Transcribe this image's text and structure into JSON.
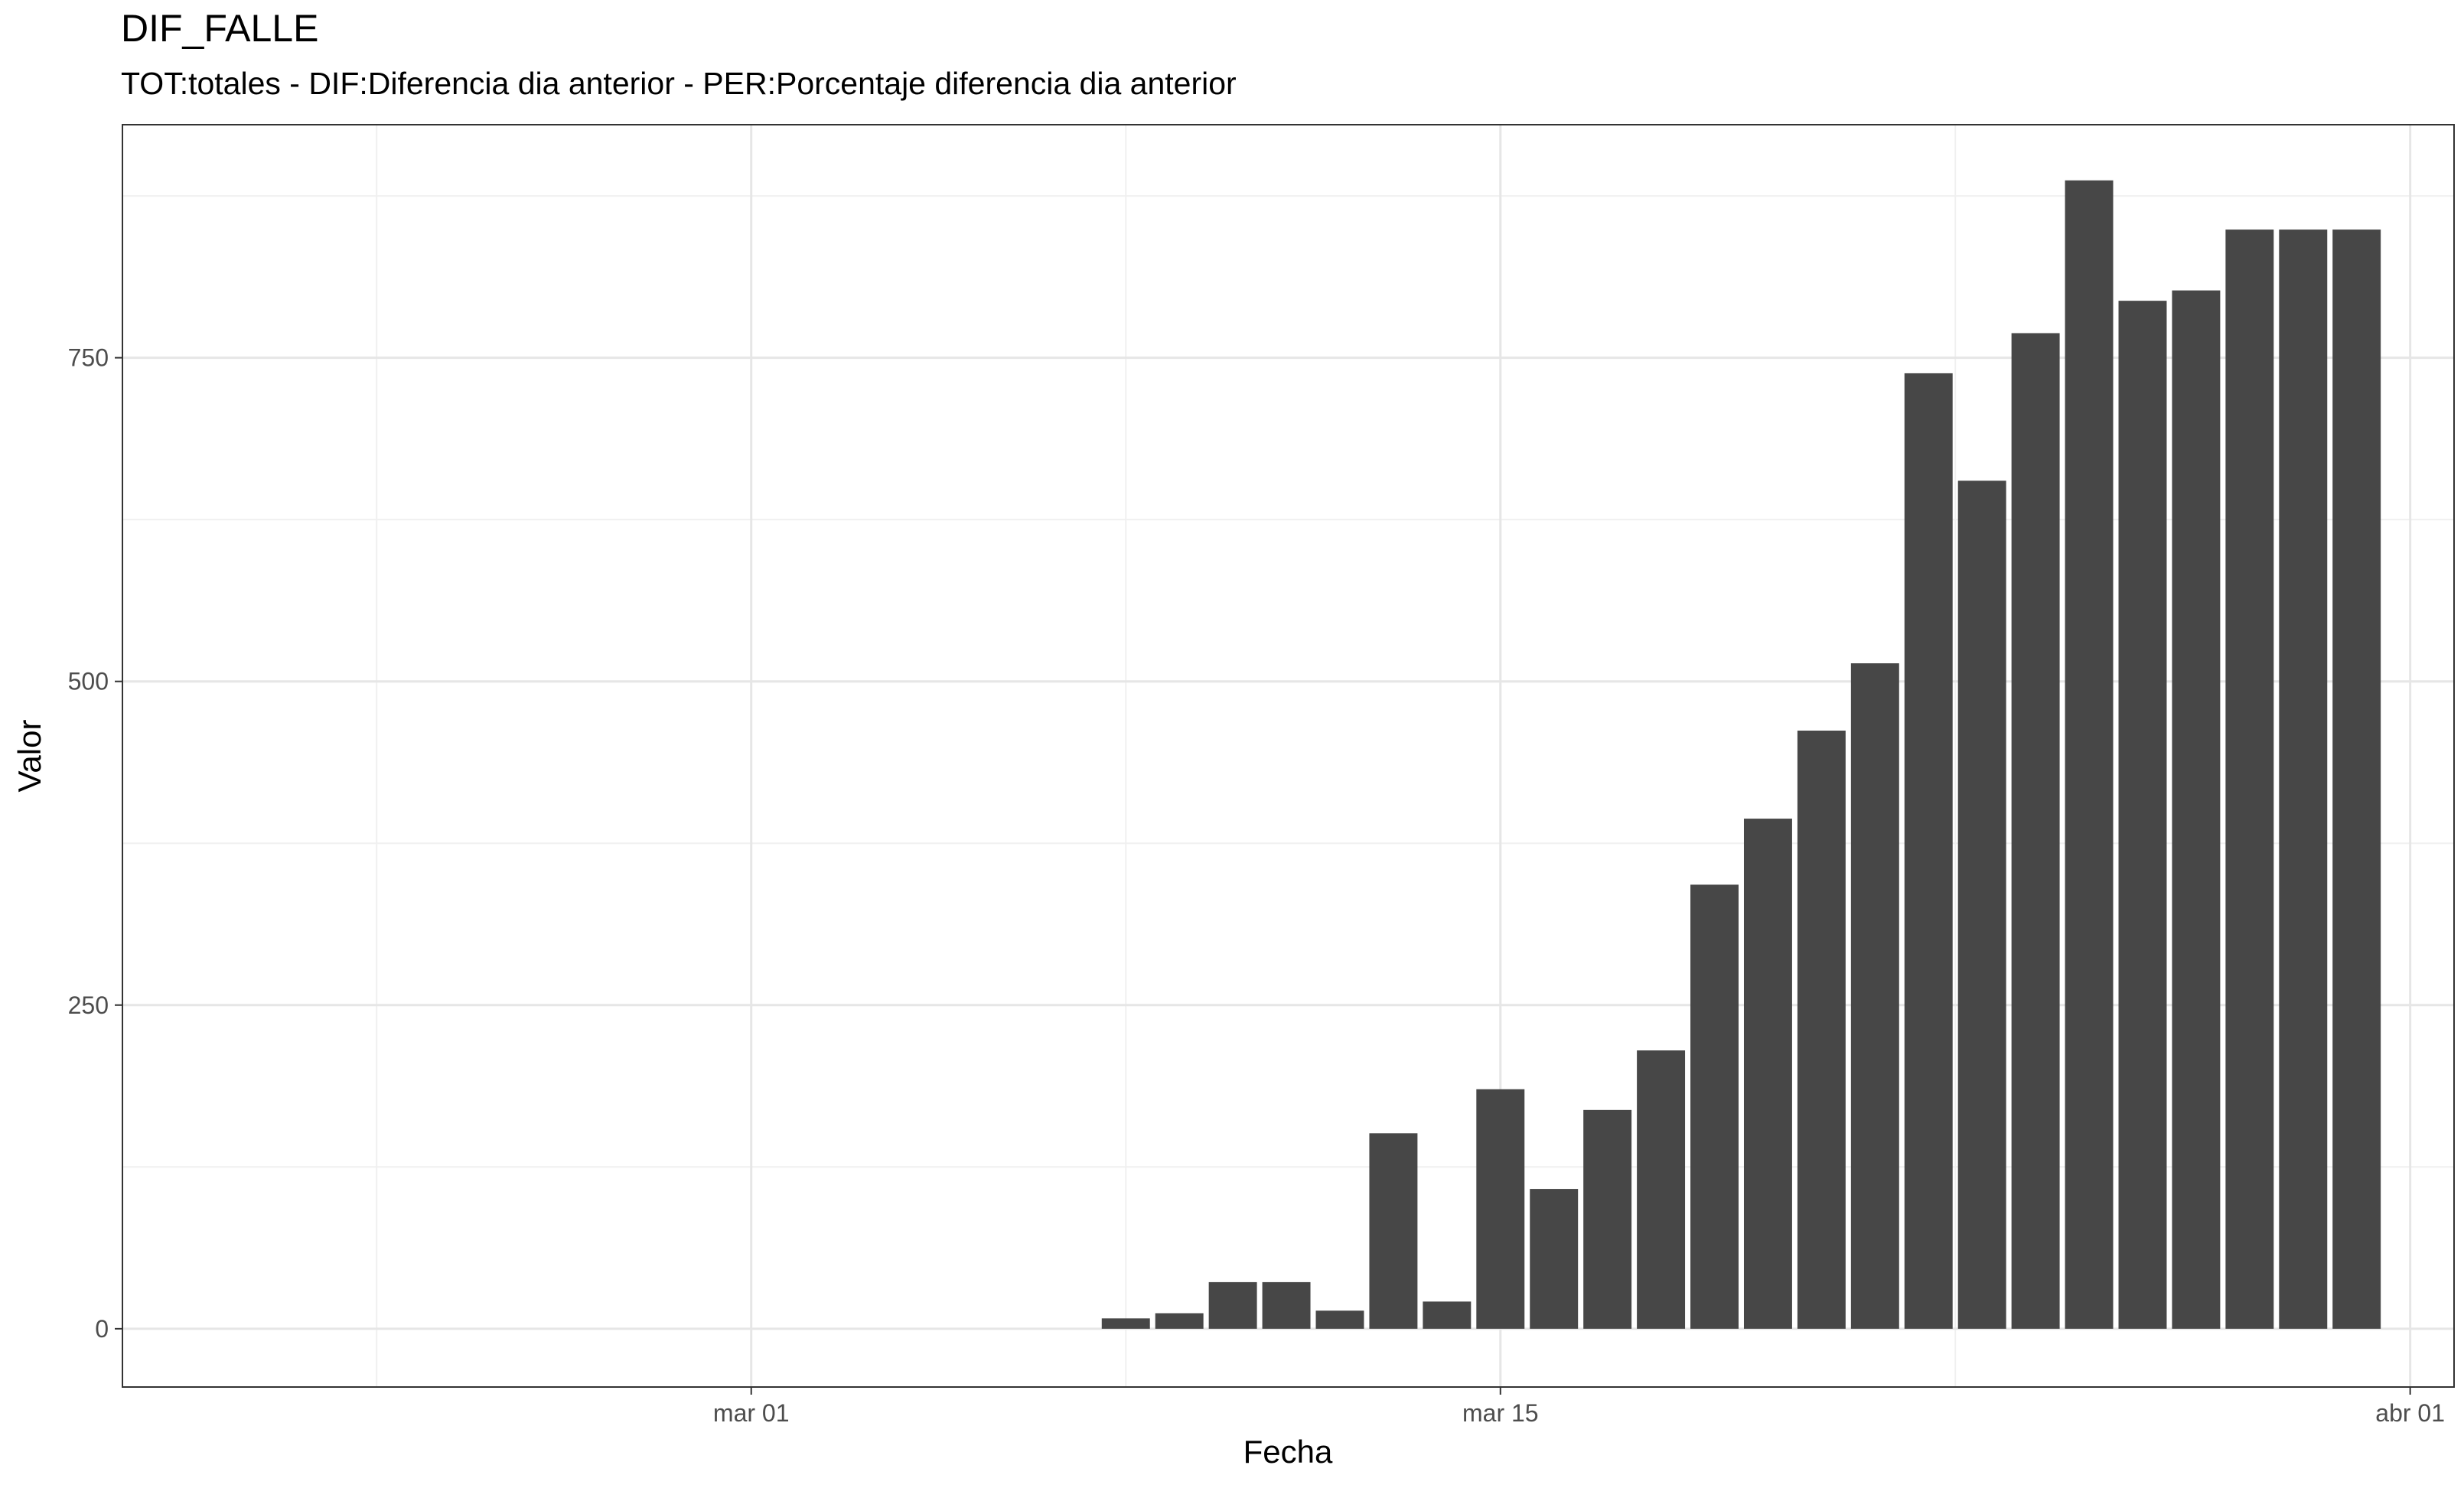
{
  "chart_data": {
    "type": "bar",
    "title": "DIF_FALLE",
    "subtitle": "TOT:totales - DIF:Diferencia dia anterior - PER:Porcentaje diferencia dia anterior",
    "xlabel": "Fecha",
    "ylabel": "Valor",
    "x_axis": {
      "type": "date",
      "range": [
        "2020-02-19",
        "2020-04-01"
      ],
      "ticks": [
        {
          "date": "2020-03-01",
          "label": "mar 01"
        },
        {
          "date": "2020-03-15",
          "label": "mar 15"
        },
        {
          "date": "2020-04-01",
          "label": "abr 01"
        }
      ]
    },
    "y_axis": {
      "range": [
        -45,
        930
      ],
      "ticks": [
        0,
        250,
        500,
        750
      ],
      "tick_labels": [
        "0",
        "250",
        "500",
        "750"
      ]
    },
    "grid": true,
    "bar_color": "#474747",
    "categories": [
      "2020-03-08",
      "2020-03-09",
      "2020-03-10",
      "2020-03-11",
      "2020-03-12",
      "2020-03-13",
      "2020-03-14",
      "2020-03-15",
      "2020-03-16",
      "2020-03-17",
      "2020-03-18",
      "2020-03-19",
      "2020-03-20",
      "2020-03-21",
      "2020-03-22",
      "2020-03-23",
      "2020-03-24",
      "2020-03-25",
      "2020-03-26",
      "2020-03-27",
      "2020-03-28",
      "2020-03-29",
      "2020-03-30",
      "2020-03-31"
    ],
    "values": [
      8,
      12,
      36,
      36,
      14,
      151,
      21,
      185,
      108,
      169,
      215,
      343,
      394,
      462,
      514,
      738,
      655,
      769,
      887,
      794,
      802,
      849,
      849,
      849
    ]
  }
}
